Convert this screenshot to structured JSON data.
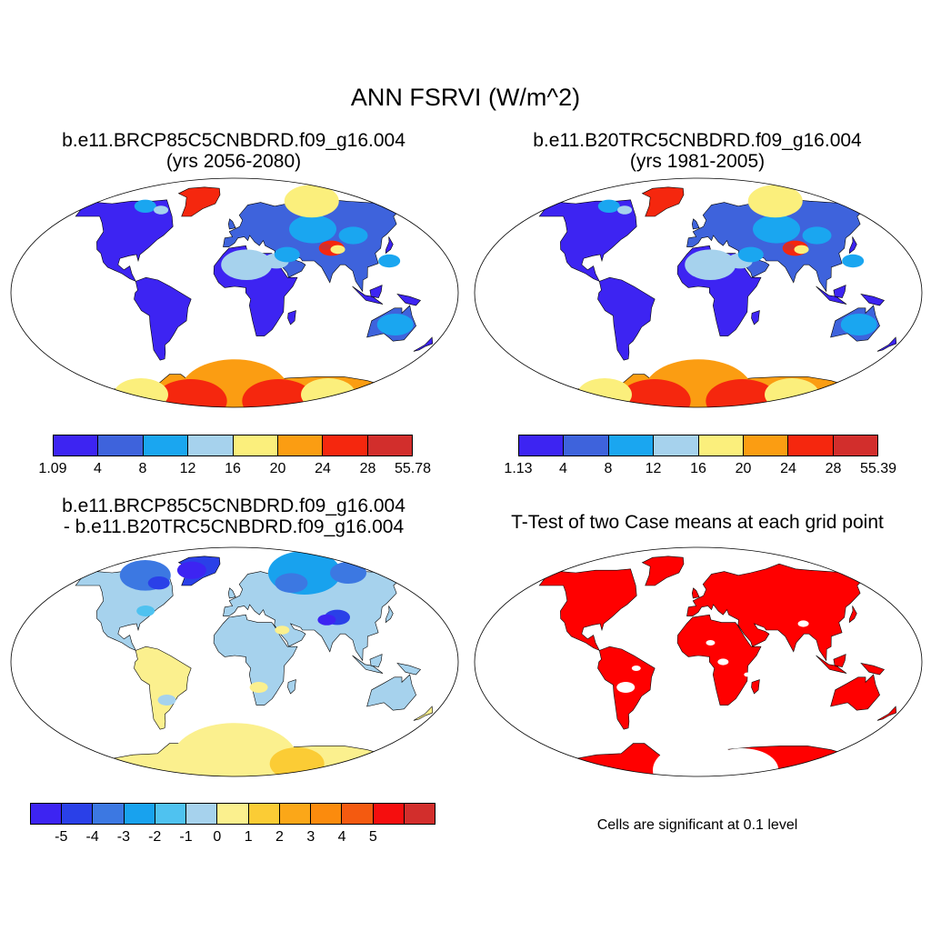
{
  "title": "ANN FSRVI (W/m^2)",
  "panels": [
    {
      "title_line1": "b.e11.BRCP85C5CNBDRD.f09_g16.004",
      "title_line2": "(yrs 2056-2080)",
      "colorbar": {
        "colors": [
          "#3d24f2",
          "#3e63dc",
          "#1aa6f0",
          "#a6d2ed",
          "#fbef7c",
          "#fb9d12",
          "#f5270e",
          "#d22e2c"
        ],
        "labels": [
          "1.09",
          "4",
          "8",
          "12",
          "16",
          "20",
          "24",
          "28",
          "55.78"
        ]
      }
    },
    {
      "title_line1": "b.e11.B20TRC5CNBDRD.f09_g16.004",
      "title_line2": "(yrs 1981-2005)",
      "colorbar": {
        "colors": [
          "#3d24f2",
          "#3e63dc",
          "#1aa6f0",
          "#a6d2ed",
          "#fbef7c",
          "#fb9d12",
          "#f5270e",
          "#d22e2c"
        ],
        "labels": [
          "1.13",
          "4",
          "8",
          "12",
          "16",
          "20",
          "24",
          "28",
          "55.39"
        ]
      }
    },
    {
      "title_line1": "b.e11.BRCP85C5CNBDRD.f09_g16.004",
      "title_line2": "- b.e11.B20TRC5CNBDRD.f09_g16.004",
      "colorbar": {
        "colors": [
          "#3d24f2",
          "#2a40e8",
          "#3c78e2",
          "#18a2ee",
          "#4fc2f0",
          "#a6d2ed",
          "#fbf08e",
          "#fbcc35",
          "#fba718",
          "#fb8b0d",
          "#f45a10",
          "#f50e0e",
          "#d22e2c"
        ],
        "labels": [
          "-5",
          "-4",
          "-3",
          "-2",
          "-1",
          "0",
          "1",
          "2",
          "3",
          "4",
          "5"
        ]
      }
    },
    {
      "title_line1": "T-Test of two Case means at each grid point",
      "note": "Cells are significant at 0.1 level",
      "sig_color": "#ff0000"
    }
  ]
}
